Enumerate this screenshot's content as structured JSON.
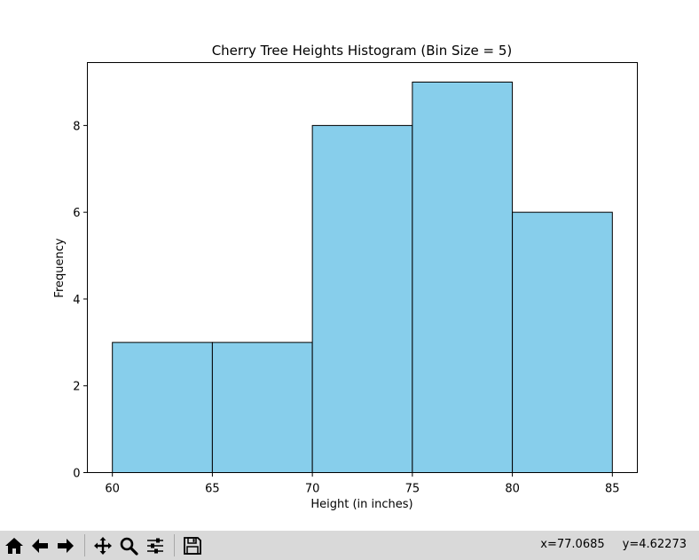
{
  "chart_data": {
    "type": "bar",
    "title": "Cherry Tree Heights Histogram (Bin Size = 5)",
    "xlabel": "Height (in inches)",
    "ylabel": "Frequency",
    "bins": [
      {
        "start": 60,
        "end": 65,
        "count": 3
      },
      {
        "start": 65,
        "end": 70,
        "count": 3
      },
      {
        "start": 70,
        "end": 75,
        "count": 8
      },
      {
        "start": 75,
        "end": 80,
        "count": 9
      },
      {
        "start": 80,
        "end": 85,
        "count": 6
      }
    ],
    "xlim": [
      58.75,
      86.25
    ],
    "ylim": [
      0,
      9.45
    ],
    "xticks": [
      60,
      65,
      70,
      75,
      80,
      85
    ],
    "yticks": [
      0,
      2,
      4,
      6,
      8
    ],
    "bar_color": "#87CEEB",
    "edge_color": "#000000",
    "grid": false
  },
  "toolbar": {
    "buttons": [
      {
        "name": "home-button",
        "icon": "home-icon"
      },
      {
        "name": "back-button",
        "icon": "back-arrow-icon"
      },
      {
        "name": "forward-button",
        "icon": "forward-arrow-icon"
      },
      {
        "name": "pan-button",
        "icon": "move-icon"
      },
      {
        "name": "zoom-button",
        "icon": "magnifier-icon"
      },
      {
        "name": "configure-button",
        "icon": "sliders-icon"
      },
      {
        "name": "save-button",
        "icon": "floppy-disk-icon"
      }
    ],
    "x_readout": "x=77.0685",
    "y_readout": "y=4.62273"
  }
}
